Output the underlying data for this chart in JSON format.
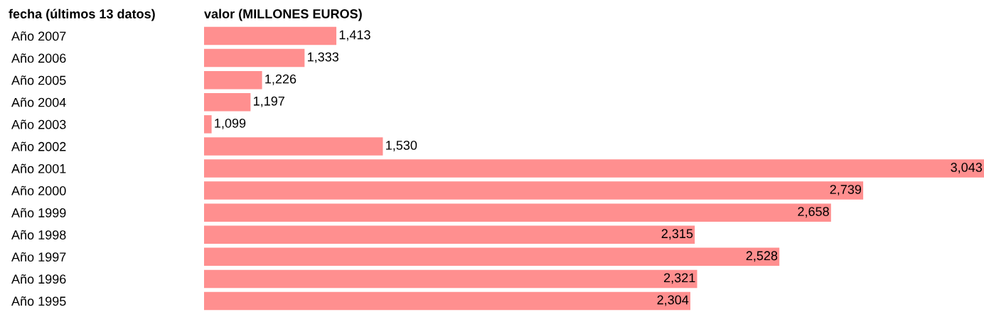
{
  "chart_data": {
    "type": "bar",
    "orientation": "horizontal",
    "ylabel": "fecha (últimos 13 datos)",
    "xlabel": "valor (MILLONES EUROS)",
    "categories": [
      "Año 2007",
      "Año 2006",
      "Año 2005",
      "Año 2004",
      "Año 2003",
      "Año 2002",
      "Año 2001",
      "Año 2000",
      "Año 1999",
      "Año 1998",
      "Año 1997",
      "Año 1996",
      "Año 1995"
    ],
    "values": [
      1413,
      1333,
      1226,
      1197,
      1099,
      1530,
      3043,
      2739,
      2658,
      2315,
      2528,
      2321,
      2304
    ],
    "value_labels": [
      "1,413",
      "1,333",
      "1,226",
      "1,197",
      "1,099",
      "1,530",
      "3,043",
      "2,739",
      "2,658",
      "2,315",
      "2,528",
      "2,321",
      "2,304"
    ],
    "color": "#ff8f8f",
    "xlim": [
      1080,
      3043
    ],
    "grid": false,
    "legend": false
  }
}
